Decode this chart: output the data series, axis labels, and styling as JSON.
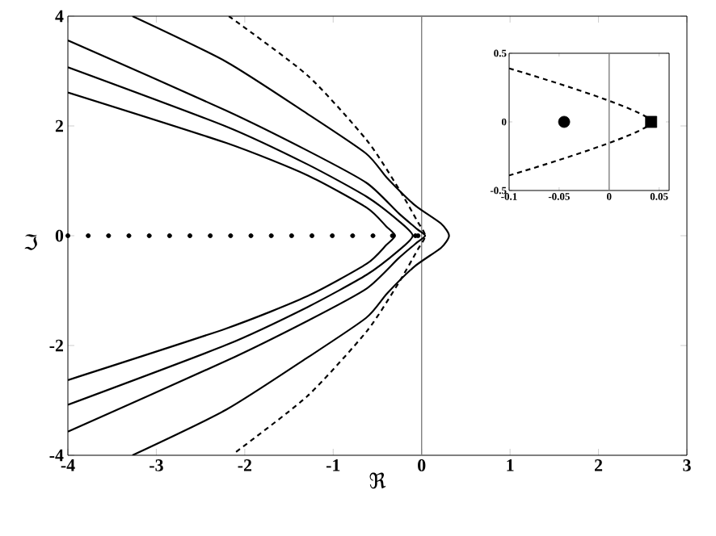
{
  "chart_data": [
    {
      "type": "line",
      "xlabel": "ℜ",
      "ylabel": "ℑ",
      "xlim": [
        -4,
        3
      ],
      "ylim": [
        -4,
        4
      ],
      "xticks": [
        -4,
        -3,
        -2,
        -1,
        0,
        1,
        2,
        3
      ],
      "yticks": [
        -4,
        -2,
        0,
        2,
        4
      ],
      "ref_lines": [
        {
          "axis": "x",
          "value": 0,
          "color": "#808080"
        }
      ],
      "series": [
        {
          "type": "line",
          "color": "#000000",
          "line_style": "solid",
          "x": [
            -3.27,
            -2.21,
            -1.3,
            -0.63,
            -0.39,
            -0.08,
            0.22,
            0.31,
            0.22,
            -0.08,
            -0.39,
            -0.63,
            -1.3,
            -2.21,
            -3.27
          ],
          "values": [
            4,
            3.17,
            2.23,
            1.5,
            1.05,
            0.56,
            0.22,
            0,
            -0.22,
            -0.56,
            -1.05,
            -1.5,
            -2.23,
            -3.17,
            -4
          ]
        },
        {
          "type": "line",
          "color": "#000000",
          "line_style": "solid",
          "x": [
            -4,
            -2.21,
            -1.29,
            -0.62,
            -0.26,
            -0.05,
            0.04,
            -0.05,
            -0.26,
            -0.62,
            -1.29,
            -2.21,
            -4
          ],
          "values": [
            3.56,
            2.28,
            1.55,
            0.96,
            0.41,
            0.12,
            0,
            -0.12,
            -0.41,
            -0.96,
            -1.55,
            -2.28,
            -3.57
          ]
        },
        {
          "type": "line",
          "color": "#000000",
          "line_style": "solid",
          "x": [
            -4,
            -2.21,
            -1.29,
            -0.62,
            -0.26,
            -0.1,
            -0.26,
            -0.62,
            -1.29,
            -2.21,
            -4
          ],
          "values": [
            3.07,
            1.99,
            1.3,
            0.71,
            0.27,
            0,
            -0.27,
            -0.71,
            -1.3,
            -1.99,
            -3.08
          ]
        },
        {
          "type": "line",
          "color": "#000000",
          "line_style": "solid",
          "x": [
            -4,
            -2.21,
            -1.29,
            -0.62,
            -0.4,
            -0.3,
            -0.4,
            -0.62,
            -1.29,
            -2.21,
            -4
          ],
          "values": [
            2.61,
            1.69,
            1.1,
            0.51,
            0.17,
            0,
            -0.17,
            -0.51,
            -1.1,
            -1.69,
            -2.63
          ]
        },
        {
          "type": "line",
          "color": "#000000",
          "line_style": "dashed",
          "x": [
            -2.18,
            -1.29,
            -0.62,
            -0.26,
            -0.05,
            0.04,
            -0.05,
            -0.26,
            -0.62,
            -1.29,
            -2.1
          ],
          "values": [
            4,
            2.92,
            1.74,
            0.86,
            0.27,
            0,
            -0.27,
            -0.86,
            -1.74,
            -2.92,
            -3.94
          ]
        },
        {
          "type": "scatter",
          "color": "#000000",
          "marker": "circle",
          "x": [
            -4,
            -3.77,
            -3.54,
            -3.31,
            -3.08,
            -2.85,
            -2.62,
            -2.39,
            -2.16,
            -1.93,
            -1.7,
            -1.47,
            -1.24,
            -1.01,
            -0.78,
            -0.55,
            -0.33,
            -0.07,
            -0.04
          ],
          "values": [
            0,
            0,
            0,
            0,
            0,
            0,
            0,
            0,
            0,
            0,
            0,
            0,
            0,
            0,
            0,
            0,
            0,
            0,
            0
          ]
        }
      ]
    },
    {
      "type": "line",
      "xlim": [
        -0.1,
        0.06
      ],
      "ylim": [
        -0.5,
        0.5
      ],
      "xticks": [
        -0.1,
        -0.05,
        0,
        0.05
      ],
      "yticks": [
        -0.5,
        0,
        0.5
      ],
      "ref_lines": [
        {
          "axis": "x",
          "value": 0,
          "color": "#808080"
        }
      ],
      "series": [
        {
          "type": "line",
          "color": "#000000",
          "line_style": "dashed",
          "x": [
            -0.1,
            0.042,
            -0.1
          ],
          "values": [
            0.39,
            0,
            -0.39
          ]
        },
        {
          "type": "scatter",
          "color": "#000000",
          "marker": "circle",
          "x": [
            -0.045
          ],
          "values": [
            0
          ]
        },
        {
          "type": "scatter",
          "color": "#000000",
          "marker": "square",
          "x": [
            0.042
          ],
          "values": [
            0
          ]
        }
      ]
    }
  ]
}
